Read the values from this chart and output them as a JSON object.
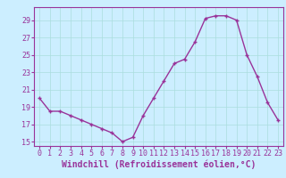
{
  "x": [
    0,
    1,
    2,
    3,
    4,
    5,
    6,
    7,
    8,
    9,
    10,
    11,
    12,
    13,
    14,
    15,
    16,
    17,
    18,
    19,
    20,
    21,
    22,
    23
  ],
  "y": [
    20.0,
    18.5,
    18.5,
    18.0,
    17.5,
    17.0,
    16.5,
    16.0,
    15.0,
    15.5,
    18.0,
    20.0,
    22.0,
    24.0,
    24.5,
    26.5,
    29.2,
    29.5,
    29.5,
    29.0,
    25.0,
    22.5,
    19.5,
    17.5
  ],
  "line_color": "#993399",
  "marker": "+",
  "marker_size": 3,
  "linewidth": 1.0,
  "xlabel": "Windchill (Refroidissement éolien,°C)",
  "xlabel_fontsize": 7,
  "ylim": [
    14.5,
    30.5
  ],
  "xlim": [
    -0.5,
    23.5
  ],
  "yticks": [
    15,
    17,
    19,
    21,
    23,
    25,
    27,
    29
  ],
  "xticks": [
    0,
    1,
    2,
    3,
    4,
    5,
    6,
    7,
    8,
    9,
    10,
    11,
    12,
    13,
    14,
    15,
    16,
    17,
    18,
    19,
    20,
    21,
    22,
    23
  ],
  "grid_color": "#aadddd",
  "background_color": "#cceeff",
  "tick_color": "#993399",
  "tick_fontsize": 6,
  "spine_color": "#993399"
}
